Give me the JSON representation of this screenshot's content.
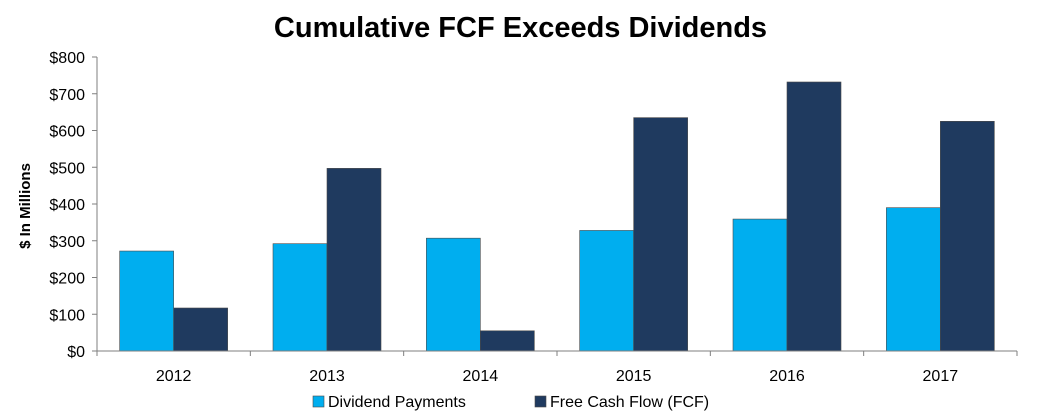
{
  "chart_data": {
    "type": "bar",
    "title": "Cumulative FCF Exceeds Dividends",
    "xlabel": "",
    "ylabel": "$ In Millions",
    "categories": [
      "2012",
      "2013",
      "2014",
      "2015",
      "2016",
      "2017"
    ],
    "series": [
      {
        "name": "Dividend Payments",
        "color": "#00AEEF",
        "values": [
          272,
          292,
          307,
          328,
          359,
          390
        ]
      },
      {
        "name": "Free Cash Flow (FCF)",
        "color": "#1F3A5F",
        "values": [
          117,
          497,
          55,
          635,
          732,
          625
        ]
      }
    ],
    "ylim": [
      0,
      800
    ],
    "yticks": [
      0,
      100,
      200,
      300,
      400,
      500,
      600,
      700,
      800
    ],
    "ytick_labels": [
      "$0",
      "$100",
      "$200",
      "$300",
      "$400",
      "$500",
      "$600",
      "$700",
      "$800"
    ],
    "grid": false,
    "legend_position": "bottom"
  }
}
